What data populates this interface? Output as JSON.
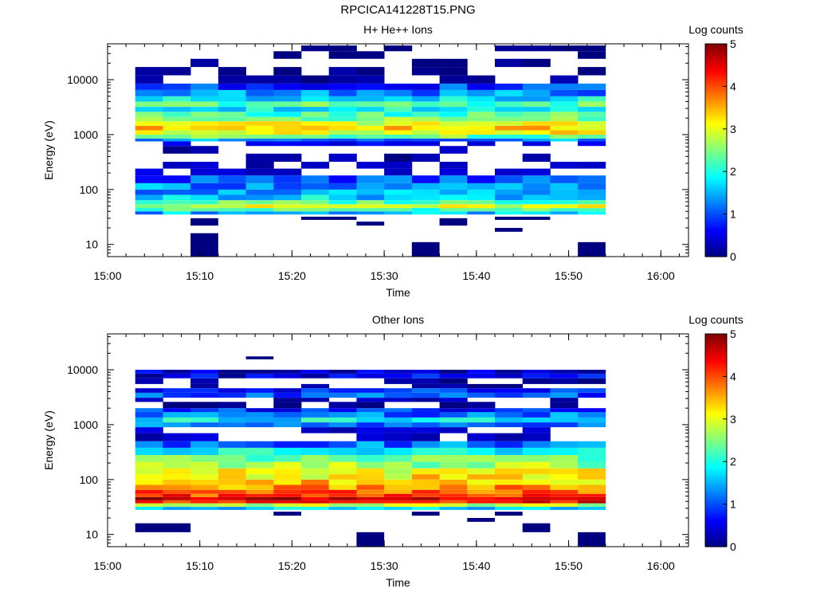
{
  "figure_title": "RPCICA141228T15.PNG",
  "chart_data": [
    {
      "type": "heatmap",
      "title": "H+ He++ Ions",
      "xlabel": "Time",
      "ylabel": "Energy (eV)",
      "x_ticks": [
        "15:00",
        "15:10",
        "15:20",
        "15:30",
        "15:40",
        "15:50",
        "16:00"
      ],
      "xlim": [
        "15:00",
        "16:03"
      ],
      "y_scale": "log",
      "y_ticks": [
        10,
        100,
        1000,
        10000
      ],
      "ylim": [
        6,
        45000
      ],
      "colorbar": {
        "label": "Log counts",
        "min": 0,
        "max": 5,
        "ticks": [
          0,
          1,
          2,
          3,
          4,
          5
        ]
      },
      "time_bins": [
        "15:03",
        "15:06",
        "15:09",
        "15:12",
        "15:15",
        "15:18",
        "15:21",
        "15:24",
        "15:27",
        "15:30",
        "15:33",
        "15:36",
        "15:39",
        "15:42",
        "15:45",
        "15:48",
        "15:51"
      ],
      "time_end": "15:54",
      "profile": [
        {
          "e": [
            35,
            40
          ],
          "v": 1.5
        },
        {
          "e": [
            40,
            46
          ],
          "v": 2.3
        },
        {
          "e": [
            46,
            54
          ],
          "v": 2.9
        },
        {
          "e": [
            54,
            64
          ],
          "v": 2.3
        },
        {
          "e": [
            64,
            80
          ],
          "v": 1.7
        },
        {
          "e": [
            80,
            100
          ],
          "v": 1.4
        },
        {
          "e": [
            100,
            130
          ],
          "v": 1.3
        },
        {
          "e": [
            130,
            180
          ],
          "v": 1.0
        },
        {
          "e": [
            180,
            240
          ],
          "v": 0.7,
          "gap": true
        },
        {
          "e": [
            240,
            320
          ],
          "v": 0.5,
          "gap": true
        },
        {
          "e": [
            320,
            450
          ],
          "v": 0.4,
          "gap": true
        },
        {
          "e": [
            450,
            620
          ],
          "v": 0.5,
          "gap": true
        },
        {
          "e": [
            620,
            750
          ],
          "v": 0.8,
          "gap": true
        },
        {
          "e": [
            750,
            850
          ],
          "v": 1.3
        },
        {
          "e": [
            850,
            1000
          ],
          "v": 2.4
        },
        {
          "e": [
            1000,
            1200
          ],
          "v": 3.1
        },
        {
          "e": [
            1200,
            1450
          ],
          "v": 3.3
        },
        {
          "e": [
            1450,
            1750
          ],
          "v": 2.9
        },
        {
          "e": [
            1750,
            2100
          ],
          "v": 2.5
        },
        {
          "e": [
            2100,
            2600
          ],
          "v": 2.2
        },
        {
          "e": [
            2600,
            3200
          ],
          "v": 1.9
        },
        {
          "e": [
            3200,
            4000
          ],
          "v": 2.3
        },
        {
          "e": [
            4000,
            5000
          ],
          "v": 1.8
        },
        {
          "e": [
            5000,
            6500
          ],
          "v": 1.3
        },
        {
          "e": [
            6500,
            8500
          ],
          "v": 0.9
        },
        {
          "e": [
            8500,
            12000
          ],
          "v": 0.4,
          "gap": true
        },
        {
          "e": [
            12000,
            17000
          ],
          "v": 0.3,
          "gap": true
        },
        {
          "e": [
            17000,
            24000
          ],
          "v": 0.3,
          "gap": true
        },
        {
          "e": [
            24000,
            33000
          ],
          "v": 0.2,
          "gap": true
        },
        {
          "e": [
            33000,
            42000
          ],
          "v": 0.2,
          "gap": true
        }
      ],
      "low_blocks": [
        {
          "t": [
            "15:09",
            "15:12"
          ],
          "e": [
            6,
            16
          ],
          "v": 0
        },
        {
          "t": [
            "15:09",
            "15:12"
          ],
          "e": [
            22,
            30
          ],
          "v": 0
        },
        {
          "t": [
            "15:21",
            "15:27"
          ],
          "e": [
            28,
            32
          ],
          "v": 0
        },
        {
          "t": [
            "15:27",
            "15:30"
          ],
          "e": [
            22,
            26
          ],
          "v": 0
        },
        {
          "t": [
            "15:33",
            "15:36"
          ],
          "e": [
            6,
            11
          ],
          "v": 0
        },
        {
          "t": [
            "15:36",
            "15:39"
          ],
          "e": [
            22,
            30
          ],
          "v": 0
        },
        {
          "t": [
            "15:42",
            "15:45"
          ],
          "e": [
            17,
            20
          ],
          "v": 0
        },
        {
          "t": [
            "15:42",
            "15:48"
          ],
          "e": [
            28,
            32
          ],
          "v": 0
        },
        {
          "t": [
            "15:51",
            "15:54"
          ],
          "e": [
            6,
            11
          ],
          "v": 0
        }
      ]
    },
    {
      "type": "heatmap",
      "title": "Other Ions",
      "xlabel": "Time",
      "ylabel": "Energy (eV)",
      "x_ticks": [
        "15:00",
        "15:10",
        "15:20",
        "15:30",
        "15:40",
        "15:50",
        "16:00"
      ],
      "xlim": [
        "15:00",
        "16:03"
      ],
      "y_scale": "log",
      "y_ticks": [
        10,
        100,
        1000,
        10000
      ],
      "ylim": [
        6,
        45000
      ],
      "colorbar": {
        "label": "Log counts",
        "min": 0,
        "max": 5,
        "ticks": [
          0,
          1,
          2,
          3,
          4,
          5
        ]
      },
      "time_bins": [
        "15:03",
        "15:06",
        "15:09",
        "15:12",
        "15:15",
        "15:18",
        "15:21",
        "15:24",
        "15:27",
        "15:30",
        "15:33",
        "15:36",
        "15:39",
        "15:42",
        "15:45",
        "15:48",
        "15:51"
      ],
      "time_end": "15:54",
      "profile": [
        {
          "e": [
            28,
            32
          ],
          "v": 1.6
        },
        {
          "e": [
            32,
            37
          ],
          "v": 2.8
        },
        {
          "e": [
            37,
            42
          ],
          "v": 4.3
        },
        {
          "e": [
            42,
            48
          ],
          "v": 4.7
        },
        {
          "e": [
            48,
            55
          ],
          "v": 4.1
        },
        {
          "e": [
            55,
            65
          ],
          "v": 3.9
        },
        {
          "e": [
            65,
            80
          ],
          "v": 3.6
        },
        {
          "e": [
            80,
            100
          ],
          "v": 3.4
        },
        {
          "e": [
            100,
            125
          ],
          "v": 3.2
        },
        {
          "e": [
            125,
            160
          ],
          "v": 3.0
        },
        {
          "e": [
            160,
            210
          ],
          "v": 2.6
        },
        {
          "e": [
            210,
            280
          ],
          "v": 2.3
        },
        {
          "e": [
            280,
            380
          ],
          "v": 1.8
        },
        {
          "e": [
            380,
            500
          ],
          "v": 1.2
        },
        {
          "e": [
            500,
            700
          ],
          "v": 0.6,
          "gap": true
        },
        {
          "e": [
            700,
            900
          ],
          "v": 0.6,
          "gap": true
        },
        {
          "e": [
            900,
            1100
          ],
          "v": 1.2
        },
        {
          "e": [
            1100,
            1350
          ],
          "v": 1.8
        },
        {
          "e": [
            1350,
            1700
          ],
          "v": 1.2
        },
        {
          "e": [
            1700,
            2000
          ],
          "v": 0.8
        },
        {
          "e": [
            2000,
            2600
          ],
          "v": 0.3,
          "gap": true
        },
        {
          "e": [
            2600,
            3100
          ],
          "v": 0.5,
          "gap": true
        },
        {
          "e": [
            3100,
            3800
          ],
          "v": 1.0
        },
        {
          "e": [
            3800,
            4600
          ],
          "v": 0.8
        },
        {
          "e": [
            4600,
            5500
          ],
          "v": 0.4,
          "gap": true
        },
        {
          "e": [
            5500,
            7000
          ],
          "v": 0.3,
          "gap": true
        },
        {
          "e": [
            7000,
            8500
          ],
          "v": 0.5
        },
        {
          "e": [
            8500,
            10000
          ],
          "v": 0.3
        }
      ],
      "low_blocks": [
        {
          "t": [
            "15:03",
            "15:09"
          ],
          "e": [
            11,
            16
          ],
          "v": 0
        },
        {
          "t": [
            "15:18",
            "15:21"
          ],
          "e": [
            22,
            26
          ],
          "v": 0
        },
        {
          "t": [
            "15:15",
            "15:18"
          ],
          "e": [
            15500,
            17500
          ],
          "v": 0
        },
        {
          "t": [
            "15:27",
            "15:30"
          ],
          "e": [
            6,
            11
          ],
          "v": 0
        },
        {
          "t": [
            "15:33",
            "15:36"
          ],
          "e": [
            22,
            26
          ],
          "v": 0
        },
        {
          "t": [
            "15:39",
            "15:42"
          ],
          "e": [
            17,
            20
          ],
          "v": 0
        },
        {
          "t": [
            "15:42",
            "15:45"
          ],
          "e": [
            22,
            26
          ],
          "v": 0
        },
        {
          "t": [
            "15:45",
            "15:48"
          ],
          "e": [
            11,
            16
          ],
          "v": 0
        },
        {
          "t": [
            "15:51",
            "15:54"
          ],
          "e": [
            6,
            11
          ],
          "v": 0
        }
      ]
    }
  ]
}
